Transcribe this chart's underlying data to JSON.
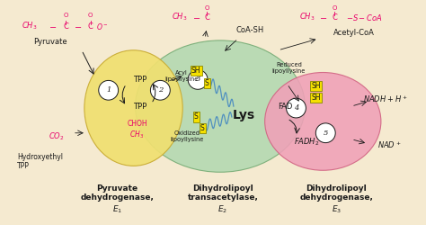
{
  "bg_color": "#f5ead0",
  "pink": "#e8006a",
  "dark": "#1a1a1a",
  "e1_color": "#f0e070",
  "e1_edge": "#c8aa30",
  "e2_color": "#b0d8b0",
  "e2_edge": "#70a870",
  "e3_color": "#f0a0b8",
  "e3_edge": "#d06080",
  "sh_bg": "#f5e000",
  "chain_color": "#5090c0",
  "label_e1": "Pyruvate\ndehydrogenase,\n$E_1$",
  "label_e2": "Dihydrolipoyl\ntransacetylase,\n$E_2$",
  "label_e3": "Dihydrolipoyl\ndehydrogenase,\n$E_3$"
}
